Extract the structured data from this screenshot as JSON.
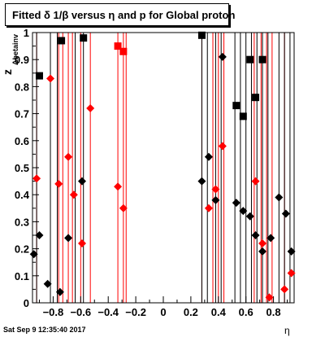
{
  "chart_data": {
    "type": "scatter",
    "title": "Fitted δ 1/β versus η and p for Global proton",
    "xlabel": "η",
    "ylabel": "z",
    "ylabel_sub": "Δbetainv",
    "xlim": [
      -0.95,
      0.95
    ],
    "ylim": [
      0,
      1
    ],
    "x_ticks": [
      -0.8,
      -0.6,
      -0.4,
      -0.2,
      0,
      0.2,
      0.4,
      0.6,
      0.8
    ],
    "x_tick_labels": [
      "−0.8",
      "−0.6",
      "−0.4",
      "−0.2",
      "0",
      "0.2",
      "0.4",
      "0.6",
      "0.8"
    ],
    "y_ticks": [
      0,
      0.1,
      0.2,
      0.3,
      0.4,
      0.5,
      0.6,
      0.7,
      0.8,
      0.9,
      1
    ],
    "y_tick_labels": [
      "0",
      "0.1",
      "0.2",
      "0.3",
      "0.4",
      "0.5",
      "0.6",
      "0.7",
      "0.8",
      "0.9",
      "1"
    ],
    "grid": false,
    "red_lines_x": [
      -0.92,
      -0.76,
      -0.73,
      -0.69,
      -0.66,
      -0.6,
      -0.53,
      -0.33,
      -0.29,
      -0.27,
      0.28,
      0.36,
      0.4,
      0.44,
      0.66,
      0.71,
      0.75,
      0.79,
      0.88
    ],
    "black_lines_x": [
      -0.92,
      -0.82,
      -0.77,
      -0.64,
      -0.58,
      0.28,
      0.32,
      0.38,
      0.42,
      0.52,
      0.56,
      0.6,
      0.64,
      0.68,
      0.72,
      0.76,
      0.84,
      0.88,
      0.92
    ],
    "series": [
      {
        "color": "#000000",
        "marker": "square",
        "points": [
          {
            "x": -0.9,
            "y": 0.84
          },
          {
            "x": -0.74,
            "y": 0.97
          },
          {
            "x": -0.58,
            "y": 0.98
          },
          {
            "x": 0.28,
            "y": 0.99
          },
          {
            "x": 0.53,
            "y": 0.73
          },
          {
            "x": 0.58,
            "y": 0.69
          },
          {
            "x": 0.63,
            "y": 0.9
          },
          {
            "x": 0.67,
            "y": 0.76
          },
          {
            "x": 0.72,
            "y": 0.9
          }
        ]
      },
      {
        "color": "#ff0000",
        "marker": "square",
        "points": [
          {
            "x": -0.33,
            "y": 0.95
          },
          {
            "x": -0.29,
            "y": 0.93
          }
        ]
      },
      {
        "color": "#000000",
        "marker": "diamond",
        "points": [
          {
            "x": -0.94,
            "y": 0.18
          },
          {
            "x": -0.9,
            "y": 0.25
          },
          {
            "x": -0.84,
            "y": 0.07
          },
          {
            "x": -0.75,
            "y": 0.04
          },
          {
            "x": -0.69,
            "y": 0.24
          },
          {
            "x": -0.59,
            "y": 0.45
          },
          {
            "x": 0.28,
            "y": 0.45
          },
          {
            "x": 0.33,
            "y": 0.54
          },
          {
            "x": 0.38,
            "y": 0.38
          },
          {
            "x": 0.43,
            "y": 0.91
          },
          {
            "x": 0.53,
            "y": 0.37
          },
          {
            "x": 0.58,
            "y": 0.34
          },
          {
            "x": 0.63,
            "y": 0.32
          },
          {
            "x": 0.67,
            "y": 0.25
          },
          {
            "x": 0.72,
            "y": 0.19
          },
          {
            "x": 0.78,
            "y": 0.24
          },
          {
            "x": 0.84,
            "y": 0.39
          },
          {
            "x": 0.89,
            "y": 0.33
          },
          {
            "x": 0.93,
            "y": 0.19
          }
        ]
      },
      {
        "color": "#ff0000",
        "marker": "diamond",
        "points": [
          {
            "x": -0.92,
            "y": 0.46
          },
          {
            "x": -0.82,
            "y": 0.83
          },
          {
            "x": -0.76,
            "y": 0.44
          },
          {
            "x": -0.69,
            "y": 0.54
          },
          {
            "x": -0.65,
            "y": 0.4
          },
          {
            "x": -0.59,
            "y": 0.22
          },
          {
            "x": -0.53,
            "y": 0.72
          },
          {
            "x": -0.33,
            "y": 0.43
          },
          {
            "x": -0.29,
            "y": 0.35
          },
          {
            "x": 0.33,
            "y": 0.35
          },
          {
            "x": 0.38,
            "y": 0.42
          },
          {
            "x": 0.43,
            "y": 0.58
          },
          {
            "x": 0.67,
            "y": 0.45
          },
          {
            "x": 0.72,
            "y": 0.22
          },
          {
            "x": 0.77,
            "y": 0.02
          },
          {
            "x": 0.88,
            "y": 0.05
          },
          {
            "x": 0.93,
            "y": 0.11
          }
        ]
      }
    ]
  },
  "footer": {
    "timestamp": "Sat Sep  9 12:35:40 2017"
  }
}
